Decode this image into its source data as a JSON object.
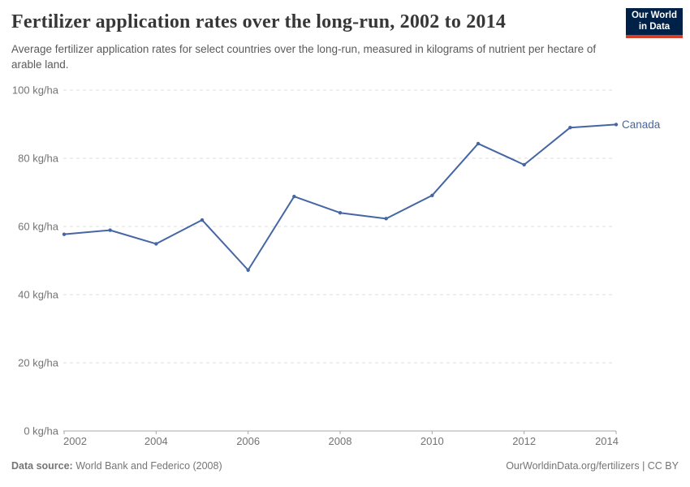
{
  "header": {
    "title": "Fertilizer application rates over the long-run, 2002 to 2014",
    "subtitle": "Average fertilizer application rates for select countries over the long-run, measured in kilograms of nutrient per hectare of arable land.",
    "logo": {
      "line1": "Our World",
      "line2": "in Data",
      "bg_color": "#002147",
      "accent_color": "#d43f2a"
    }
  },
  "chart_data": {
    "type": "line",
    "title": "Fertilizer application rates over the long-run, 2002 to 2014",
    "xlabel": "",
    "ylabel": "kg/ha",
    "x": [
      2002,
      2003,
      2004,
      2005,
      2006,
      2007,
      2008,
      2009,
      2010,
      2011,
      2012,
      2013,
      2014
    ],
    "series": [
      {
        "name": "Canada",
        "color": "#4566a4",
        "values": [
          57.7,
          58.9,
          54.9,
          61.9,
          47.2,
          68.8,
          64.0,
          62.3,
          69.1,
          84.3,
          78.1,
          89.0,
          89.9
        ]
      }
    ],
    "ylim": [
      0,
      100
    ],
    "yticks": [
      0,
      20,
      40,
      60,
      80,
      100
    ],
    "ytick_labels": [
      "0 kg/ha",
      "20 kg/ha",
      "40 kg/ha",
      "60 kg/ha",
      "80 kg/ha",
      "100 kg/ha"
    ],
    "xticks": [
      2002,
      2004,
      2006,
      2008,
      2010,
      2012,
      2014
    ],
    "xtick_labels": [
      "2002",
      "2004",
      "2006",
      "2008",
      "2010",
      "2012",
      "2014"
    ],
    "grid": "horizontal-dashed",
    "legend_position": "end-of-line",
    "colors": {
      "gridline": "#dcdcdc",
      "axis": "#a8a8a8",
      "tick_text": "#737373"
    }
  },
  "footer": {
    "source_label": "Data source:",
    "source_value": " World Bank and Federico (2008)",
    "credit": "OurWorldinData.org/fertilizers | CC BY"
  }
}
